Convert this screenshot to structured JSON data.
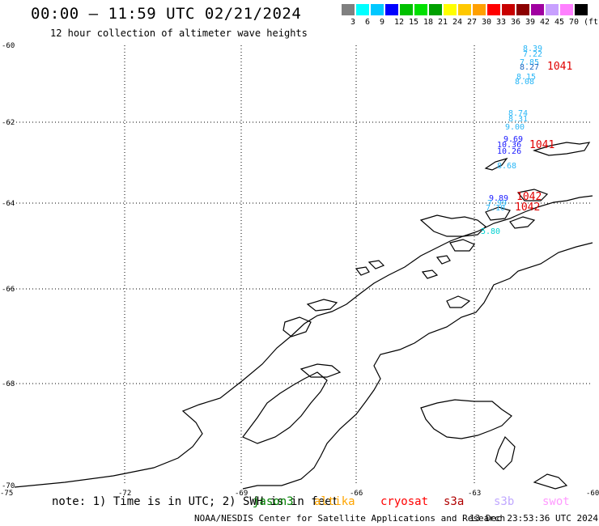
{
  "header": {
    "title": "00:00 – 11:59 UTC 02/21/2024",
    "subtitle": "12 hour collection of altimeter wave heights"
  },
  "color_scale": {
    "colors": [
      "#808080",
      "#00ffff",
      "#00c8ff",
      "#0000ff",
      "#00c000",
      "#00e000",
      "#00a000",
      "#ffff00",
      "#ffc800",
      "#ffa000",
      "#ff0000",
      "#c80000",
      "#8b0000",
      "#a000a0",
      "#c8a0ff",
      "#ff80ff",
      "#000000"
    ],
    "labels": [
      "3",
      "6",
      "9",
      "12",
      "15",
      "18",
      "21",
      "24",
      "27",
      "30",
      "33",
      "36",
      "39",
      "42",
      "45",
      "70",
      "(ft)"
    ]
  },
  "axes": {
    "lat_labels": [
      "-60",
      "-62",
      "-64",
      "-66",
      "-68",
      "-70"
    ],
    "lon_labels": [
      "-75",
      "-72",
      "-69",
      "-66",
      "-63",
      "-60"
    ]
  },
  "wave_labels": [
    {
      "text": "8.39",
      "color": "#29b6f6"
    },
    {
      "text": "7.22",
      "color": "#29b6f6"
    },
    {
      "text": "7.85",
      "color": "#29b6f6"
    },
    {
      "text": "8.27",
      "color": "#1565c0"
    },
    {
      "text": "8.15",
      "color": "#29b6f6"
    },
    {
      "text": "8.08",
      "color": "#29b6f6"
    },
    {
      "text": "8.74",
      "color": "#29b6f6"
    },
    {
      "text": "8.31",
      "color": "#29b6f6"
    },
    {
      "text": "9.00",
      "color": "#29b6f6"
    },
    {
      "text": "9.69",
      "color": "#1a1aff"
    },
    {
      "text": "10.36",
      "color": "#1a1aff"
    },
    {
      "text": "10.26",
      "color": "#1a1aff"
    },
    {
      "text": "8.68",
      "color": "#29b6f6"
    },
    {
      "text": "9.89",
      "color": "#1a1aff"
    },
    {
      "text": "7.99",
      "color": "#29b6f6"
    },
    {
      "text": "7.10",
      "color": "#29b6f6"
    },
    {
      "text": "5.80",
      "color": "#00d0d0"
    }
  ],
  "pressure_labels": [
    "1041",
    "1041",
    "1042",
    "1042"
  ],
  "footer": {
    "note": "note: 1) Time is in UTC; 2) SWH is in feet",
    "satellites": [
      {
        "name": "jason3",
        "color": "#008000"
      },
      {
        "name": "altika",
        "color": "#ffa500"
      },
      {
        "name": "cryosat",
        "color": "#ff0000"
      },
      {
        "name": "s3a",
        "color": "#b00000"
      },
      {
        "name": "s3b",
        "color": "#c0a8ff"
      },
      {
        "name": "swot",
        "color": "#ff9aff"
      }
    ],
    "credit": "NOAA/NESDIS Center for Satellite Applications and Research",
    "timestamp": "13 Dec 23:53:36 UTC 2024"
  }
}
